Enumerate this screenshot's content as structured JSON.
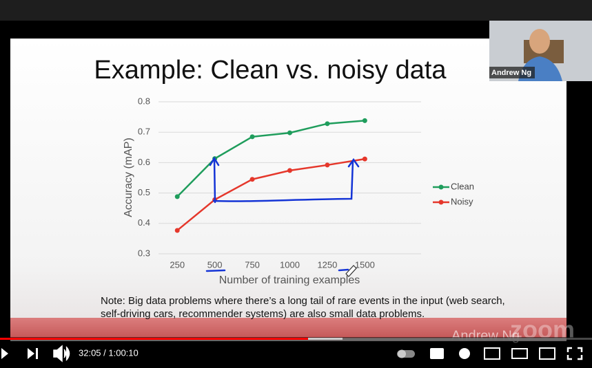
{
  "slide": {
    "title": "Example: Clean vs. noisy data",
    "note": "Note: Big data problems where there’s a long tail of rare events in the input (web search, self-driving cars, recommender systems) are also small data problems."
  },
  "chart_data": {
    "type": "line",
    "x_label": "Number of training examples",
    "y_label": "Accuracy (mAP)",
    "x": [
      250,
      500,
      750,
      1000,
      1250,
      1500
    ],
    "series": [
      {
        "name": "Clean",
        "color": "#1f9d5c",
        "values": [
          0.488,
          0.613,
          0.685,
          0.698,
          0.728,
          0.738
        ]
      },
      {
        "name": "Noisy",
        "color": "#e5372b",
        "values": [
          0.377,
          0.478,
          0.545,
          0.574,
          0.592,
          0.612
        ]
      }
    ],
    "xlim": [
      125,
      1875
    ],
    "xticks": [
      250,
      500,
      750,
      1000,
      1250,
      1500
    ],
    "ylim": [
      0.3,
      0.8
    ],
    "yticks": [
      0.3,
      0.4,
      0.5,
      0.6,
      0.7,
      0.8
    ],
    "grid": true,
    "legend": "right"
  },
  "player": {
    "time": "32:05 / 1:00:10",
    "watermark_logo": "zoom",
    "watermark_name": "Andrew Ng",
    "participant": "Andrew Ng"
  }
}
